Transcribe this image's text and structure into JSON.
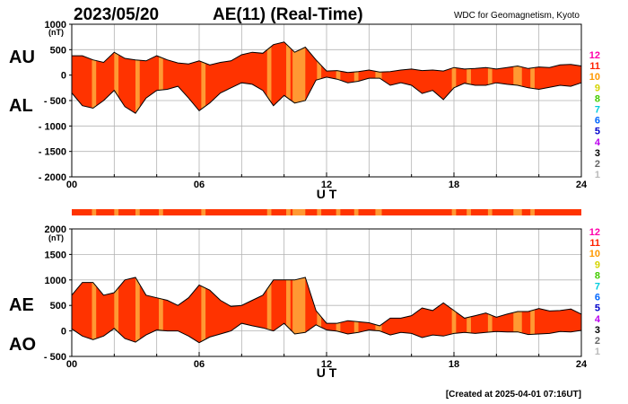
{
  "header": {
    "date": "2023/05/20",
    "title": "AE(11) (Real-Time)",
    "source": "WDC for Geomagnetism, Kyoto"
  },
  "footer": {
    "created": "[Created at 2025-04-01 07:16UT]"
  },
  "station_count_scale": {
    "labels": [
      "12",
      "11",
      "10",
      "9",
      "8",
      "7",
      "6",
      "5",
      "4",
      "3",
      "2",
      "1"
    ],
    "colors": [
      "#ff00aa",
      "#ff2200",
      "#ff9900",
      "#d4d400",
      "#44cc00",
      "#00ccdd",
      "#0066ff",
      "#0000cc",
      "#bb00ee",
      "#000000",
      "#666666",
      "#bbbbbb"
    ]
  },
  "colors": {
    "fill_full": "#ff3300",
    "fill_partial": "#ff9933",
    "outline": "#000000",
    "grid": "#b3b3b3"
  },
  "chart_data": [
    {
      "type": "area",
      "panel": "AU/AL",
      "series_labels": [
        "AU",
        "AL"
      ],
      "ylabel": "(nT)",
      "xlabel": "U T",
      "xlim": [
        0,
        24
      ],
      "ylim": [
        -2000,
        1000
      ],
      "y_ticks": [
        1000,
        500,
        0,
        -500,
        -1000,
        -1500,
        -2000
      ],
      "y_tick_labels": [
        "1000",
        "500",
        "0",
        "- 500",
        "- 1000",
        "- 1500",
        "- 2000"
      ],
      "x_tick_labels": [
        "00",
        "06",
        "12",
        "18",
        "24"
      ],
      "grid": true,
      "x": [
        0,
        0.5,
        1,
        1.5,
        2,
        2.5,
        3,
        3.5,
        4,
        4.5,
        5,
        5.5,
        6,
        6.5,
        7,
        7.5,
        8,
        8.5,
        9,
        9.5,
        10,
        10.5,
        11,
        11.5,
        12,
        12.5,
        13,
        13.5,
        14,
        14.5,
        15,
        15.5,
        16,
        16.5,
        17,
        17.5,
        18,
        18.5,
        19,
        19.5,
        20,
        20.5,
        21,
        21.5,
        22,
        22.5,
        23,
        23.5,
        24
      ],
      "upper": [
        380,
        380,
        300,
        250,
        450,
        330,
        300,
        280,
        380,
        300,
        240,
        220,
        280,
        200,
        250,
        280,
        400,
        450,
        430,
        600,
        650,
        450,
        550,
        300,
        80,
        90,
        50,
        70,
        100,
        60,
        70,
        100,
        120,
        90,
        100,
        80,
        150,
        120,
        130,
        150,
        120,
        150,
        180,
        130,
        160,
        150,
        200,
        210,
        180
      ],
      "lower": [
        -350,
        -600,
        -650,
        -500,
        -300,
        -620,
        -750,
        -450,
        -300,
        -280,
        -220,
        -450,
        -700,
        -550,
        -350,
        -250,
        -150,
        -180,
        -300,
        -600,
        -400,
        -550,
        -500,
        -100,
        -40,
        -80,
        -150,
        -120,
        -60,
        -60,
        -200,
        -150,
        -200,
        -360,
        -300,
        -480,
        -250,
        -160,
        -200,
        -200,
        -150,
        -180,
        -200,
        -250,
        -280,
        -240,
        -200,
        -220,
        -150
      ]
    },
    {
      "type": "area",
      "panel": "AE/AO",
      "series_labels": [
        "AE",
        "AO"
      ],
      "ylabel": "(nT)",
      "xlabel": "U T",
      "xlim": [
        0,
        24
      ],
      "ylim": [
        -500,
        2000
      ],
      "y_ticks": [
        2000,
        1500,
        1000,
        500,
        0,
        -500
      ],
      "y_tick_labels": [
        "2000",
        "1500",
        "1000",
        "500",
        "0",
        "- 500"
      ],
      "x_tick_labels": [
        "00",
        "06",
        "12",
        "18",
        "24"
      ],
      "grid": true,
      "x": [
        0,
        0.5,
        1,
        1.5,
        2,
        2.5,
        3,
        3.5,
        4,
        4.5,
        5,
        5.5,
        6,
        6.5,
        7,
        7.5,
        8,
        8.5,
        9,
        9.5,
        10,
        10.5,
        11,
        11.5,
        12,
        12.5,
        13,
        13.5,
        14,
        14.5,
        15,
        15.5,
        16,
        16.5,
        17,
        17.5,
        18,
        18.5,
        19,
        19.5,
        20,
        20.5,
        21,
        21.5,
        22,
        22.5,
        23,
        23.5,
        24
      ],
      "upper": [
        700,
        950,
        950,
        700,
        750,
        1000,
        1050,
        700,
        650,
        600,
        500,
        650,
        900,
        800,
        600,
        480,
        500,
        600,
        700,
        1000,
        1000,
        1000,
        1050,
        400,
        150,
        150,
        200,
        180,
        160,
        100,
        250,
        250,
        300,
        450,
        400,
        550,
        400,
        250,
        300,
        350,
        270,
        330,
        380,
        380,
        440,
        390,
        400,
        430,
        330
      ],
      "lower": [
        40,
        -100,
        -170,
        -100,
        50,
        -150,
        -220,
        -80,
        20,
        0,
        0,
        -100,
        -230,
        -120,
        -60,
        0,
        150,
        100,
        60,
        0,
        150,
        -60,
        -30,
        120,
        20,
        -5,
        -60,
        -30,
        20,
        0,
        -80,
        -30,
        -50,
        -130,
        -80,
        -100,
        -50,
        -30,
        -50,
        -30,
        -10,
        -20,
        -20,
        -70,
        -60,
        -50,
        -10,
        -20,
        10
      ]
    }
  ],
  "coverage_bar": {
    "normal_color": "#ff3300",
    "reduced_color": "#ff9933",
    "reduced_bands_ut": [
      [
        0.95,
        1.15
      ],
      [
        2.0,
        2.2
      ],
      [
        3.0,
        3.2
      ],
      [
        4.1,
        4.3
      ],
      [
        6.1,
        6.3
      ],
      [
        9.2,
        9.4
      ],
      [
        10.1,
        10.3
      ],
      [
        10.4,
        11.0
      ],
      [
        11.55,
        11.75
      ],
      [
        12.45,
        12.65
      ],
      [
        13.3,
        13.5
      ],
      [
        14.3,
        14.6
      ],
      [
        17.9,
        18.1
      ],
      [
        18.6,
        18.8
      ],
      [
        19.6,
        19.8
      ],
      [
        20.8,
        21.2
      ],
      [
        21.6,
        21.8
      ]
    ]
  }
}
